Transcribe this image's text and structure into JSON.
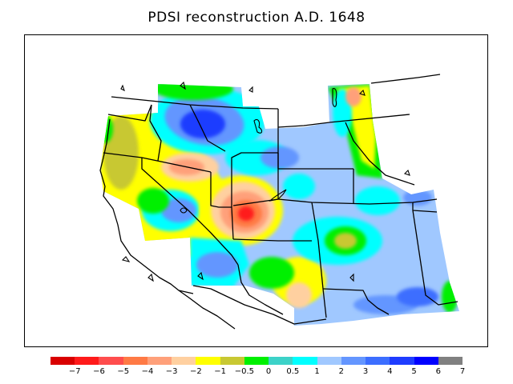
{
  "title": "PDSI reconstruction A.D. 1648",
  "legend": {
    "colors": [
      "#d90000",
      "#ff1a1a",
      "#ff4d4d",
      "#ff7a45",
      "#ffa07a",
      "#ffd0a0",
      "#ffff00",
      "#c8c832",
      "#00f000",
      "#3cd2c8",
      "#00ffff",
      "#a0c8ff",
      "#6496ff",
      "#3c6eff",
      "#1e3cff",
      "#0000ff",
      "#808080"
    ],
    "labels": [
      "−7",
      "−6",
      "−5",
      "−4",
      "−3",
      "−2",
      "−1",
      "−0.5",
      "0",
      "0.5",
      "1",
      "2",
      "3",
      "4",
      "5",
      "6",
      "7"
    ]
  },
  "palette": {
    "red": "#ff1a1a",
    "orange": "#ff7a45",
    "salmon": "#ffa07a",
    "peach": "#ffd0a0",
    "yellow": "#ffff00",
    "olive": "#c8c832",
    "green": "#00f000",
    "teal": "#3cd2c8",
    "cyan": "#00ffff",
    "lightblue": "#a0c8ff",
    "medblue": "#6496ff",
    "blue": "#3c6eff",
    "royal": "#1e3cff"
  }
}
